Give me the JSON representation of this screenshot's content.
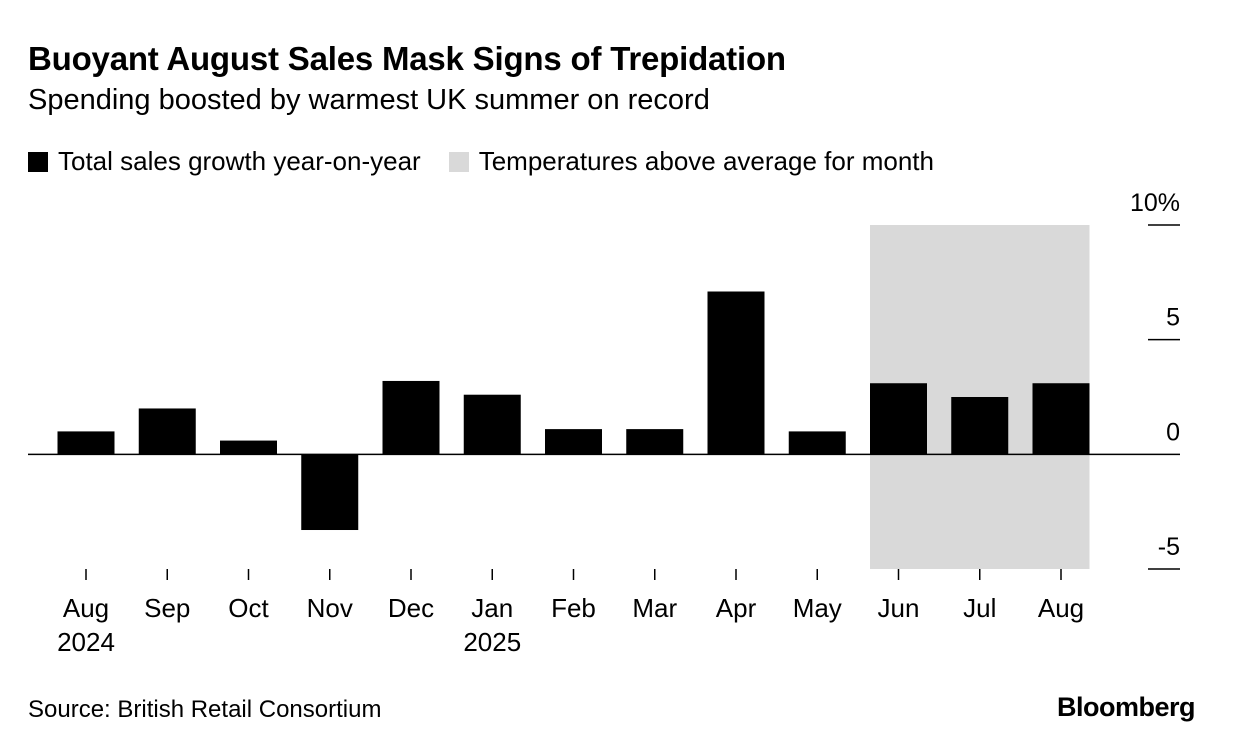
{
  "header": {
    "title": "Buoyant August Sales Mask Signs of Trepidation",
    "subtitle": "Spending boosted by warmest UK summer on record"
  },
  "legend": {
    "items": [
      {
        "label": "Total sales growth year-on-year",
        "color": "#000000"
      },
      {
        "label": "Temperatures above average for month",
        "color": "#d9d9d9"
      }
    ]
  },
  "footer": {
    "source": "Source: British Retail Consortium",
    "brand": "Bloomberg"
  },
  "chart_data": {
    "type": "bar",
    "categories": [
      "Aug",
      "Sep",
      "Oct",
      "Nov",
      "Dec",
      "Jan",
      "Feb",
      "Mar",
      "Apr",
      "May",
      "Jun",
      "Jul",
      "Aug"
    ],
    "year_labels": [
      "2024",
      "",
      "",
      "",
      "",
      "2025",
      "",
      "",
      "",
      "",
      "",
      "",
      ""
    ],
    "series": [
      {
        "name": "Total sales growth year-on-year",
        "values": [
          1.0,
          2.0,
          0.6,
          -3.3,
          3.2,
          2.6,
          1.1,
          1.1,
          7.1,
          1.0,
          3.1,
          2.5,
          3.1
        ],
        "color": "#000000"
      }
    ],
    "shaded_categories": [
      10,
      11,
      12
    ],
    "ylim": [
      -5,
      10
    ],
    "yticks": [
      -5,
      0,
      5,
      10
    ],
    "ytick_labels": [
      "-5",
      "0",
      "5",
      "10%"
    ],
    "xlabel": "",
    "ylabel": "",
    "axis_side": "right"
  }
}
